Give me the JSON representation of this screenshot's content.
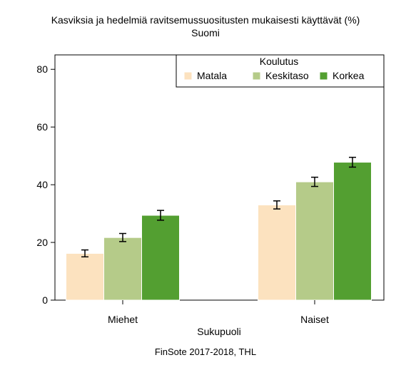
{
  "chart_data": {
    "type": "bar",
    "title": "Kasviksia ja hedelmiä ravitsemussuositusten mukaisesti käyttävät (%)",
    "subtitle": "Suomi",
    "xlabel": "Sukupuoli",
    "ylabel": "",
    "categories": [
      "Miehet",
      "Naiset"
    ],
    "ylim": [
      0,
      85
    ],
    "yticks": [
      0,
      20,
      40,
      60,
      80
    ],
    "grid": false,
    "legend": {
      "title": "Koulutus",
      "placement": "top-right"
    },
    "series": [
      {
        "name": "Matala",
        "color": "#fce2bf",
        "values": [
          16.2,
          33.0
        ],
        "ci": [
          [
            15.0,
            17.4
          ],
          [
            31.6,
            34.4
          ]
        ]
      },
      {
        "name": "Keskitaso",
        "color": "#b5cb89",
        "values": [
          21.7,
          41.0
        ],
        "ci": [
          [
            20.3,
            23.1
          ],
          [
            39.4,
            42.6
          ]
        ]
      },
      {
        "name": "Korkea",
        "color": "#539f31",
        "values": [
          29.4,
          47.8
        ],
        "ci": [
          [
            27.7,
            31.1
          ],
          [
            46.1,
            49.5
          ]
        ]
      }
    ],
    "source": "FinSote 2017-2018, THL"
  }
}
